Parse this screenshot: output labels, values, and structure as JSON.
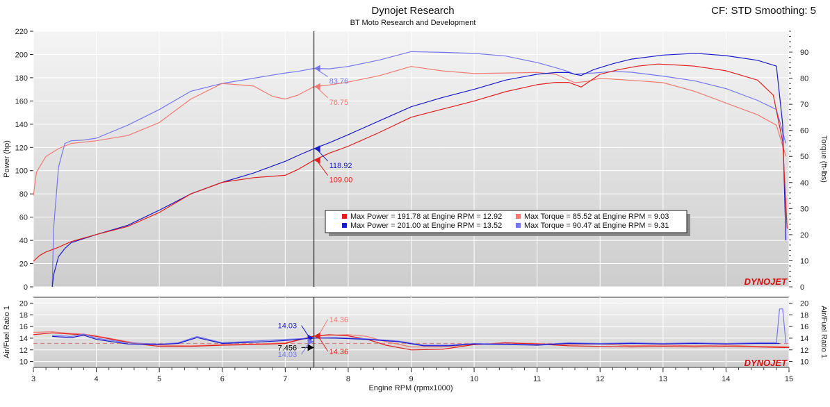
{
  "header": {
    "title": "Dynojet Research",
    "subtitle": "BT Moto Research and Development",
    "cf": "CF: STD Smoothing: 5"
  },
  "logo_text": "DYNOJET",
  "colors": {
    "red": "#e0201e",
    "blue": "#1a1acc",
    "light_red": "#f07a72",
    "light_blue": "#7676ee",
    "plot_bg_top": "#f4f4f4",
    "plot_bg_bottom": "#cfcfcf",
    "afr_target_line": "#d08a86"
  },
  "chart_data": [
    {
      "type": "line",
      "xlabel": "Engine RPM (rpmx1000)",
      "xlim": [
        3,
        15
      ],
      "x_ticks": [
        "3",
        "4",
        "5",
        "6",
        "7",
        "8",
        "9",
        "10",
        "11",
        "12",
        "13",
        "14",
        "15"
      ],
      "ylabel": "Power (hp)",
      "ylim": [
        0,
        220
      ],
      "y_ticks": [
        "0",
        "20",
        "40",
        "60",
        "80",
        "100",
        "120",
        "140",
        "160",
        "180",
        "200",
        "220"
      ],
      "y2label": "Torque (ft-lbs)",
      "y2lim": [
        0,
        98
      ],
      "y2_ticks": [
        "0",
        "10",
        "20",
        "30",
        "40",
        "50",
        "60",
        "70",
        "80",
        "90"
      ],
      "grid": true,
      "cursor_rpm": 7.456,
      "series": [
        {
          "key": "torque_blue",
          "axis": "right",
          "color": "light_blue",
          "x": [
            3.3,
            3.32,
            3.4,
            3.5,
            3.6,
            3.8,
            4.0,
            4.5,
            5.0,
            5.5,
            6.0,
            6.5,
            7.0,
            7.2,
            7.456,
            7.7,
            8.0,
            8.5,
            9.0,
            9.5,
            10.0,
            10.5,
            11.0,
            11.3,
            11.5,
            11.6,
            11.7,
            11.9,
            12.2,
            12.5,
            13.0,
            13.5,
            14.0,
            14.5,
            14.8,
            14.95
          ],
          "y": [
            0,
            22,
            46,
            55,
            56,
            56.3,
            57,
            62,
            68,
            75,
            78,
            80,
            82,
            82.6,
            83.76,
            83.6,
            84.5,
            87,
            90.2,
            89.9,
            89.5,
            88.5,
            86,
            84,
            82.5,
            81.5,
            81.8,
            82,
            82.6,
            82.3,
            80.8,
            79,
            76,
            71.5,
            68,
            55
          ]
        },
        {
          "key": "torque_red",
          "axis": "right",
          "color": "light_red",
          "x": [
            3.0,
            3.05,
            3.2,
            3.4,
            3.6,
            4.0,
            4.5,
            5.0,
            5.5,
            6.0,
            6.5,
            6.8,
            7.0,
            7.2,
            7.456,
            7.7,
            8.0,
            8.5,
            9.0,
            9.5,
            10.0,
            10.5,
            11.0,
            11.3,
            11.6,
            11.8,
            12.0,
            12.3,
            12.6,
            13.0,
            13.5,
            14.0,
            14.5,
            14.8,
            14.95
          ],
          "y": [
            35,
            44,
            50,
            53,
            55,
            56,
            58,
            63,
            72,
            78,
            77,
            73,
            72,
            73.5,
            76.75,
            77.4,
            78.5,
            81,
            84.5,
            82.8,
            81.8,
            82,
            82.2,
            81.5,
            78.3,
            78.8,
            80,
            79.5,
            79,
            78.3,
            75,
            70.5,
            66,
            62,
            50
          ]
        },
        {
          "key": "power_blue",
          "axis": "left",
          "color": "blue",
          "x": [
            3.3,
            3.32,
            3.4,
            3.5,
            3.6,
            4.0,
            4.5,
            5.0,
            5.5,
            6.0,
            6.5,
            7.0,
            7.2,
            7.456,
            7.7,
            8.0,
            8.5,
            9.0,
            9.5,
            10.0,
            10.5,
            11.0,
            11.3,
            11.5,
            11.6,
            11.7,
            11.9,
            12.2,
            12.5,
            13.0,
            13.52,
            14.0,
            14.5,
            14.8,
            14.9,
            14.95
          ],
          "y": [
            0,
            10,
            26,
            33,
            38,
            45,
            53,
            66,
            80,
            90,
            98,
            108,
            113,
            118.92,
            124,
            131,
            143,
            155,
            163,
            170,
            178,
            183,
            184.5,
            184.5,
            183,
            182,
            187,
            192,
            196,
            199.5,
            201,
            199,
            195,
            190,
            140,
            40
          ]
        },
        {
          "key": "power_red",
          "axis": "left",
          "color": "red",
          "x": [
            3.0,
            3.1,
            3.2,
            3.4,
            3.6,
            4.0,
            4.5,
            5.0,
            5.5,
            6.0,
            6.5,
            7.0,
            7.2,
            7.456,
            7.7,
            8.0,
            8.5,
            9.0,
            9.5,
            10.0,
            10.5,
            11.0,
            11.3,
            11.5,
            11.7,
            12.0,
            12.3,
            12.6,
            12.92,
            13.2,
            13.5,
            14.0,
            14.5,
            14.75,
            14.9,
            14.97
          ],
          "y": [
            22,
            27,
            30,
            34,
            39,
            45,
            52,
            64,
            80,
            90,
            94,
            96,
            101,
            109,
            115,
            121,
            133,
            146,
            153,
            160,
            168,
            174,
            176,
            176,
            172,
            183,
            187,
            190,
            191.78,
            191,
            190,
            186,
            178,
            165,
            125,
            50
          ]
        }
      ],
      "annotations": [
        {
          "text": "83.76",
          "color": "light_blue",
          "axis": "right",
          "anchor": 83.76,
          "dx": 22,
          "dy": 22
        },
        {
          "text": "76.75",
          "color": "light_red",
          "axis": "right",
          "anchor": 76.75,
          "dx": 22,
          "dy": 26
        },
        {
          "text": "118.92",
          "color": "blue",
          "axis": "left",
          "anchor": 118.92,
          "dx": 22,
          "dy": 28
        },
        {
          "text": "109.00",
          "color": "red",
          "axis": "left",
          "anchor": 109.0,
          "dx": 22,
          "dy": 32
        }
      ],
      "legend": {
        "placement": "center-right",
        "rows": [
          {
            "swatch": "red",
            "text": "Max Power = 191.78 at Engine RPM = 12.92"
          },
          {
            "swatch": "light_red",
            "text": "Max Torque = 85.52 at Engine RPM = 9.03"
          },
          {
            "swatch": "blue",
            "text": "Max Power = 201.00 at Engine RPM = 13.52"
          },
          {
            "swatch": "light_blue",
            "text": "Max Torque = 90.47 at Engine RPM = 9.31"
          }
        ]
      }
    },
    {
      "type": "line",
      "ylabel": "Air/Fuel Ratio 1",
      "y2label": "Air/Fuel Ratio 1",
      "xlim": [
        3,
        15
      ],
      "ylim": [
        9,
        21
      ],
      "y_ticks": [
        "10",
        "12",
        "14",
        "16",
        "18",
        "20"
      ],
      "y2_ticks": [
        "10",
        "12",
        "14",
        "16",
        "18",
        "20"
      ],
      "target_afr": 13.1,
      "series": [
        {
          "key": "afr_light_red",
          "color": "light_red",
          "x": [
            3.0,
            3.3,
            3.6,
            3.8,
            4.0,
            4.3,
            4.6,
            5.0,
            5.5,
            6.0,
            6.5,
            7.0,
            7.456,
            7.7,
            8.0,
            8.3,
            8.6,
            9.0,
            9.5,
            10.0,
            10.5,
            11.0,
            11.5,
            12.0,
            12.5,
            13.0,
            13.5,
            14.0,
            14.5,
            14.9,
            15.0
          ],
          "y": [
            15,
            15.1,
            14.8,
            14.7,
            14.4,
            13.8,
            13.2,
            12.8,
            12.7,
            12.9,
            13,
            13.2,
            14.36,
            14.5,
            14.6,
            14.3,
            13.4,
            12.5,
            12.5,
            12.9,
            13.2,
            13.1,
            12.9,
            13,
            12.7,
            12.8,
            12.7,
            12.8,
            12.6,
            12.6,
            12.5
          ]
        },
        {
          "key": "afr_red",
          "color": "red",
          "x": [
            3.0,
            3.3,
            3.6,
            3.8,
            4.0,
            4.3,
            4.6,
            5.0,
            5.5,
            6.0,
            6.5,
            7.0,
            7.456,
            7.7,
            8.0,
            8.3,
            8.6,
            9.0,
            9.5,
            10.0,
            10.5,
            11.0,
            11.5,
            12.0,
            12.5,
            13.0,
            13.5,
            14.0,
            14.5,
            14.9,
            15.0
          ],
          "y": [
            14.6,
            14.9,
            14.7,
            14.6,
            14.3,
            13.7,
            13.1,
            12.6,
            12.6,
            12.8,
            12.9,
            13.1,
            14.36,
            14.6,
            14.4,
            13.8,
            12.8,
            12,
            12.1,
            12.9,
            13.2,
            13,
            12.7,
            12.6,
            12.5,
            12.6,
            12.5,
            12.6,
            12.5,
            12.4,
            12.4
          ]
        },
        {
          "key": "afr_light_blue",
          "color": "light_blue",
          "x": [
            3.3,
            3.6,
            3.8,
            4.0,
            4.5,
            5.0,
            5.3,
            5.6,
            6.0,
            6.5,
            7.0,
            7.456,
            7.8,
            8.3,
            8.8,
            9.2,
            9.6,
            10.0,
            10.5,
            11.0,
            11.5,
            12.0,
            12.5,
            13.0,
            13.5,
            14.0,
            14.5,
            14.8,
            14.85,
            14.9,
            14.95
          ],
          "y": [
            14.5,
            14.3,
            14.7,
            14,
            13.2,
            13,
            13.2,
            14.3,
            13.2,
            13.5,
            13.8,
            14.03,
            14.1,
            13.9,
            13.5,
            12.8,
            12.8,
            13.1,
            13,
            12.9,
            13.2,
            13.1,
            13.2,
            13.1,
            13.2,
            13.1,
            13.2,
            13.2,
            19,
            19,
            13.2
          ]
        },
        {
          "key": "afr_blue",
          "color": "blue",
          "x": [
            3.3,
            3.6,
            3.8,
            4.0,
            4.5,
            5.0,
            5.3,
            5.6,
            6.0,
            6.5,
            7.0,
            7.456,
            7.8,
            8.3,
            8.8,
            9.2,
            9.6,
            10.0,
            10.5,
            11.0,
            11.5,
            12.0,
            12.5,
            13.0,
            13.5,
            14.0,
            14.5,
            14.85
          ],
          "y": [
            14.3,
            14.1,
            14.5,
            13.8,
            13.0,
            12.9,
            13.1,
            14.1,
            13.1,
            13.3,
            13.6,
            14.03,
            14.0,
            13.8,
            13.4,
            12.7,
            12.7,
            13.0,
            12.9,
            12.8,
            13.1,
            13.0,
            13.1,
            13.0,
            13.1,
            13.0,
            13.1,
            13.1
          ]
        }
      ],
      "annotations": [
        {
          "text": "14.03",
          "color": "blue",
          "anchor": 14.03,
          "dx": -52,
          "dy": -14
        },
        {
          "text": "14.36",
          "color": "light_red",
          "anchor": 14.36,
          "dx": 22,
          "dy": -20
        },
        {
          "text": "7.456",
          "color": "black",
          "anchor": 12.4,
          "dx": -52,
          "dy": 4
        },
        {
          "text": "14.03",
          "color": "light_blue",
          "anchor": 13.4,
          "dx": -52,
          "dy": 22
        },
        {
          "text": "14.36",
          "color": "red",
          "anchor": 14.36,
          "dx": 22,
          "dy": 26
        }
      ]
    }
  ]
}
